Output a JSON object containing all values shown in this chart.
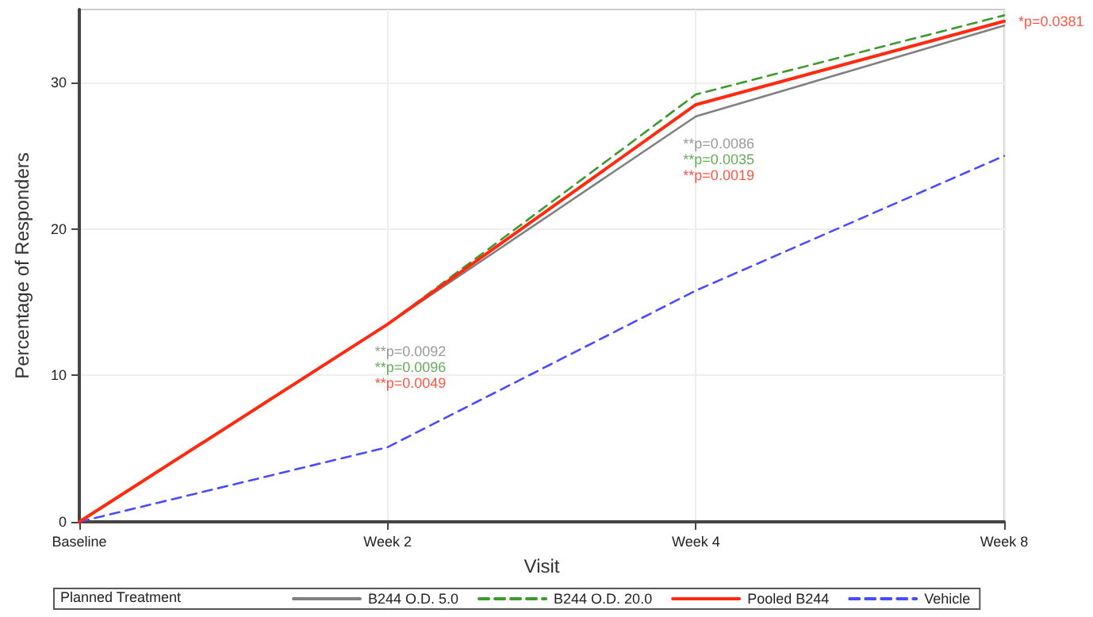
{
  "chart_data": {
    "type": "line",
    "xlabel": "Visit",
    "ylabel": "Percentage of Responders",
    "categories": [
      "Baseline",
      "Week 2",
      "Week 4",
      "Week 8"
    ],
    "ylim": [
      0,
      35
    ],
    "yticks": [
      0,
      10,
      20,
      30
    ],
    "grid": true,
    "marker": "none",
    "legend": "bottom",
    "legend_title": "Planned Treatment",
    "series": [
      {
        "name": "B244 O.D. 5.0",
        "color": "#808080",
        "line_style": "solid",
        "values": [
          0,
          13.5,
          27.7,
          33.9
        ]
      },
      {
        "name": "B244 O.D. 20.0",
        "color": "#3c9a2c",
        "line_style": "dashed",
        "values": [
          0,
          13.5,
          29.2,
          34.6
        ]
      },
      {
        "name": "Pooled B244",
        "color": "#ff2a10",
        "line_style": "solid",
        "values": [
          0,
          13.5,
          28.5,
          34.2
        ]
      },
      {
        "name": "Vehicle",
        "color": "#4a4aff",
        "line_style": "dashed",
        "values": [
          0,
          5.1,
          15.8,
          25.0
        ]
      }
    ],
    "annotations": [
      "**p=0.0092",
      "**p=0.0096",
      "**p=0.0049",
      "**p=0.0086",
      "**p=0.0035",
      "**p=0.0019",
      {
        "text": "*p=0.0381",
        "x": "Week 8",
        "y": 34.2
      }
    ]
  }
}
